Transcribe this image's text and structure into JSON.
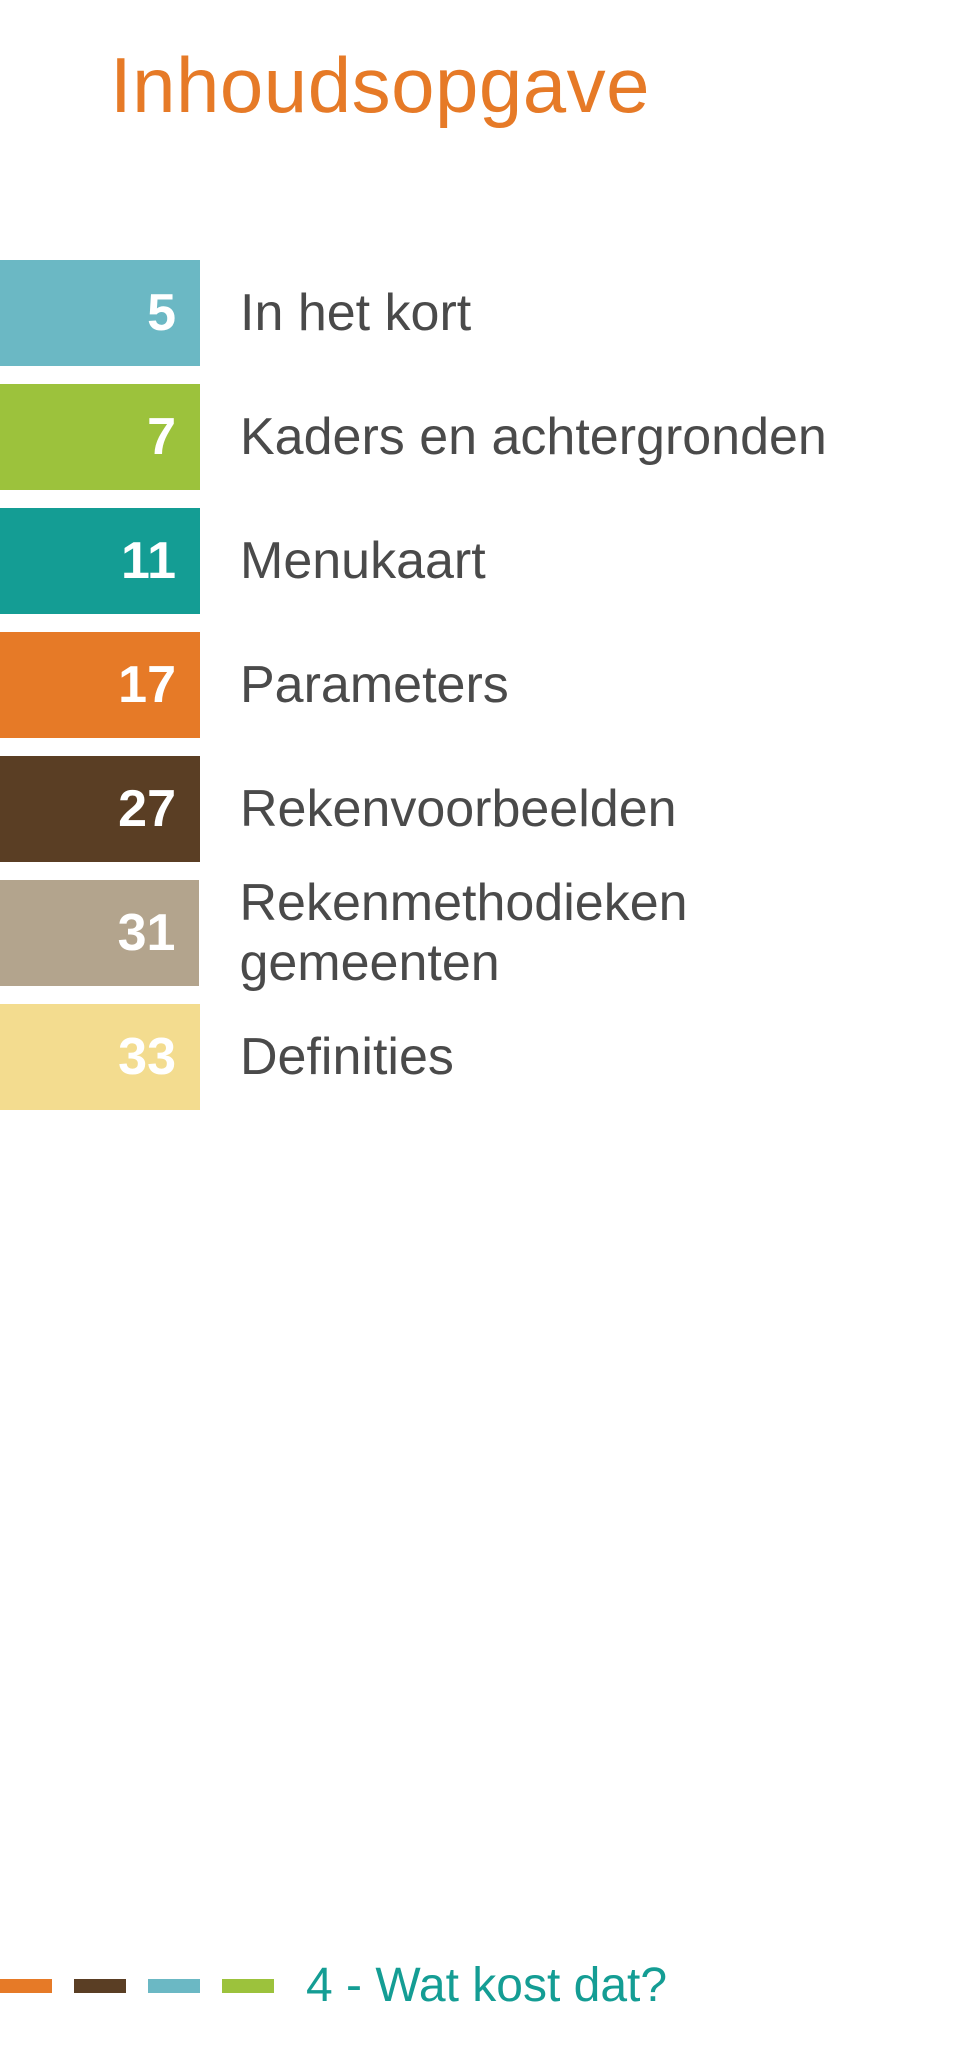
{
  "title": {
    "text": "Inhoudsopgave",
    "color": "#e67a27"
  },
  "toc": {
    "label_color": "#4a4a4a",
    "items": [
      {
        "num": "5",
        "label": "In het kort",
        "box_color": "#6bb8c4"
      },
      {
        "num": "7",
        "label": "Kaders en achtergronden",
        "box_color": "#9cc23c"
      },
      {
        "num": "11",
        "label": "Menukaart",
        "box_color": "#149d94"
      },
      {
        "num": "17",
        "label": "Parameters",
        "box_color": "#e67a27"
      },
      {
        "num": "27",
        "label": "Rekenvoorbeelden",
        "box_color": "#5a3e24"
      },
      {
        "num": "31",
        "label": "Rekenmethodieken gemeenten",
        "box_color": "#b3a48d"
      },
      {
        "num": "33",
        "label": "Definities",
        "box_color": "#f3dc8f"
      }
    ]
  },
  "footer": {
    "dash_colors": [
      "#e67a27",
      "#5a3e24",
      "#6bb8c4",
      "#9cc23c"
    ],
    "page_num": "4",
    "separator": " - ",
    "doc_title": "Wat kost dat?",
    "text_color": "#149d94"
  }
}
